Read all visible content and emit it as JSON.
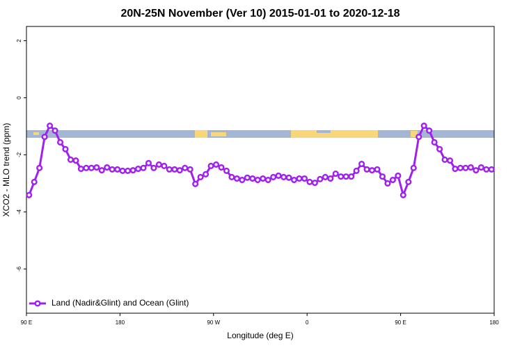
{
  "chart_data": {
    "type": "line",
    "title": "20N-25N November (Ver 10)   2015-01-01 to 2020-12-18",
    "x_label": "Longitude (deg E)",
    "y_label": "XCO2 - MLO trend (ppm)",
    "legend_position": "bottom-left",
    "xlim": [
      90,
      540
    ],
    "xticks": [
      {
        "value": 90,
        "label": "90 E"
      },
      180,
      {
        "value": 270,
        "label": "90 W"
      },
      {
        "value": 360,
        "label": "0"
      },
      {
        "value": 450,
        "label": "90 E"
      },
      {
        "value": 540,
        "label": "180"
      }
    ],
    "ylim": [
      -7.55,
      2.5
    ],
    "yticks": [
      -6,
      -4,
      -2,
      0,
      2
    ],
    "x": [
      92.5,
      97.5,
      102.5,
      107.5,
      112.5,
      117.5,
      122.5,
      127.5,
      132.5,
      137.5,
      142.5,
      147.5,
      152.5,
      157.5,
      162.5,
      167.5,
      172.5,
      177.5,
      182.5,
      187.5,
      192.5,
      197.5,
      202.5,
      207.5,
      212.5,
      217.5,
      222.5,
      227.5,
      232.5,
      237.5,
      242.5,
      247.5,
      252.5,
      257.5,
      262.5,
      267.5,
      272.5,
      277.5,
      282.5,
      287.5,
      292.5,
      297.5,
      302.5,
      307.5,
      312.5,
      317.5,
      322.5,
      327.5,
      332.5,
      337.5,
      342.5,
      347.5,
      352.5,
      357.5,
      362.5,
      367.5,
      372.5,
      377.5,
      382.5,
      387.5,
      392.5,
      397.5,
      402.5,
      407.5,
      412.5,
      417.5,
      422.5,
      427.5,
      432.5,
      437.5,
      442.5,
      447.5,
      452.5,
      457.5,
      462.5,
      467.5,
      472.5,
      477.5,
      482.5,
      487.5,
      492.5,
      497.5,
      502.5,
      507.5,
      512.5,
      517.5,
      522.5,
      527.5,
      532.5,
      537.5
    ],
    "series": [
      {
        "name": "Land (Nadir&Glint) and Ocean (Glint)",
        "color": "#a020f0",
        "values": [
          -3.41,
          -2.95,
          -2.46,
          -1.37,
          -0.98,
          -1.15,
          -1.56,
          -1.8,
          -2.17,
          -2.2,
          -2.49,
          -2.46,
          -2.46,
          -2.44,
          -2.54,
          -2.44,
          -2.51,
          -2.51,
          -2.56,
          -2.56,
          -2.54,
          -2.49,
          -2.46,
          -2.29,
          -2.46,
          -2.34,
          -2.39,
          -2.51,
          -2.51,
          -2.54,
          -2.46,
          -2.51,
          -3.02,
          -2.78,
          -2.68,
          -2.39,
          -2.34,
          -2.44,
          -2.56,
          -2.78,
          -2.83,
          -2.88,
          -2.8,
          -2.83,
          -2.88,
          -2.83,
          -2.88,
          -2.78,
          -2.73,
          -2.78,
          -2.8,
          -2.88,
          -2.83,
          -2.83,
          -2.95,
          -2.98,
          -2.85,
          -2.78,
          -2.83,
          -2.66,
          -2.76,
          -2.76,
          -2.76,
          -2.56,
          -2.32,
          -2.51,
          -2.54,
          -2.51,
          -2.76,
          -3.0,
          -2.88,
          -2.73,
          -3.41,
          -2.95,
          -2.46,
          -1.37,
          -0.98,
          -1.15,
          -1.56,
          -1.8,
          -2.17,
          -2.2,
          -2.49,
          -2.46,
          -2.46,
          -2.44,
          -2.54,
          -2.44,
          -2.51,
          -2.51
        ]
      }
    ]
  }
}
